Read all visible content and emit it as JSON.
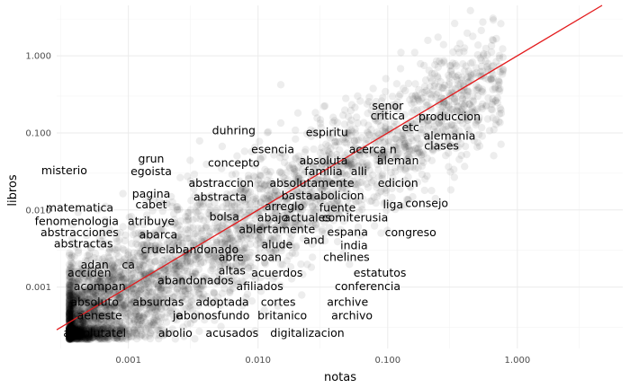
{
  "chart_data": {
    "type": "scatter",
    "xlabel": "notas",
    "ylabel": "libros",
    "x_scale": "log10",
    "y_scale": "log10",
    "xlim": [
      0.00028,
      6.5
    ],
    "ylim": [
      0.00016,
      4.5
    ],
    "x_ticks": [
      0.001,
      0.01,
      0.1,
      1
    ],
    "x_tick_labels": [
      "0.001",
      "0.010",
      "0.100",
      "1.000"
    ],
    "y_ticks": [
      0.001,
      0.01,
      0.1,
      1
    ],
    "y_tick_labels": [
      "0.001",
      "0.010",
      "0.100",
      "1.000"
    ],
    "grid": true,
    "point_color": "#000000",
    "point_alpha": 0.07,
    "reference_line": {
      "type": "y=x",
      "color": "#e31a1c"
    },
    "labels": [
      {
        "text": "senor",
        "x": 0.1,
        "y": 0.22
      },
      {
        "text": "critica",
        "x": 0.1,
        "y": 0.165
      },
      {
        "text": "produccion",
        "x": 0.3,
        "y": 0.16
      },
      {
        "text": "etc",
        "x": 0.15,
        "y": 0.115
      },
      {
        "text": "duhring",
        "x": 0.0065,
        "y": 0.105
      },
      {
        "text": "espiritu",
        "x": 0.034,
        "y": 0.1
      },
      {
        "text": "alemania",
        "x": 0.3,
        "y": 0.09
      },
      {
        "text": "clases",
        "x": 0.26,
        "y": 0.067
      },
      {
        "text": "esencia",
        "x": 0.013,
        "y": 0.06
      },
      {
        "text": "acerca",
        "x": 0.07,
        "y": 0.06
      },
      {
        "text": "n",
        "x": 0.11,
        "y": 0.06
      },
      {
        "text": "grun",
        "x": 0.0015,
        "y": 0.045
      },
      {
        "text": "concepto",
        "x": 0.0065,
        "y": 0.04
      },
      {
        "text": "absoluta",
        "x": 0.032,
        "y": 0.043
      },
      {
        "text": "i",
        "x": 0.085,
        "y": 0.043
      },
      {
        "text": "aleman",
        "x": 0.12,
        "y": 0.043
      },
      {
        "text": "misterio",
        "x": 0.00032,
        "y": 0.032
      },
      {
        "text": "egoista",
        "x": 0.0015,
        "y": 0.031
      },
      {
        "text": "familia",
        "x": 0.032,
        "y": 0.031
      },
      {
        "text": "alli",
        "x": 0.06,
        "y": 0.031
      },
      {
        "text": "abstraccion",
        "x": 0.0052,
        "y": 0.022
      },
      {
        "text": "absolutamente",
        "x": 0.026,
        "y": 0.022
      },
      {
        "text": "edicion",
        "x": 0.12,
        "y": 0.022
      },
      {
        "text": "pagina",
        "x": 0.0015,
        "y": 0.016
      },
      {
        "text": "basta",
        "x": 0.02,
        "y": 0.015
      },
      {
        "text": "abolicion",
        "x": 0.042,
        "y": 0.015
      },
      {
        "text": "abstracta",
        "x": 0.0051,
        "y": 0.0145
      },
      {
        "text": "consejo",
        "x": 0.2,
        "y": 0.012
      },
      {
        "text": "cabet",
        "x": 0.0015,
        "y": 0.0115
      },
      {
        "text": "arreglo",
        "x": 0.016,
        "y": 0.011
      },
      {
        "text": "fuente",
        "x": 0.041,
        "y": 0.0105
      },
      {
        "text": "liga",
        "x": 0.11,
        "y": 0.0115
      },
      {
        "text": "matematica",
        "x": 0.00042,
        "y": 0.0105
      },
      {
        "text": "bolsa",
        "x": 0.0055,
        "y": 0.008
      },
      {
        "text": "abajo",
        "x": 0.013,
        "y": 0.0078
      },
      {
        "text": "actuales",
        "x": 0.024,
        "y": 0.0078
      },
      {
        "text": "comiterusia",
        "x": 0.056,
        "y": 0.0078
      },
      {
        "text": "fenomenologia",
        "x": 0.0004,
        "y": 0.007
      },
      {
        "text": "atribuye",
        "x": 0.0015,
        "y": 0.007
      },
      {
        "text": "ablertamente",
        "x": 0.014,
        "y": 0.0055
      },
      {
        "text": "espana",
        "x": 0.049,
        "y": 0.0051
      },
      {
        "text": "congreso",
        "x": 0.15,
        "y": 0.005
      },
      {
        "text": "abstracciones",
        "x": 0.00042,
        "y": 0.005
      },
      {
        "text": "abarca",
        "x": 0.0017,
        "y": 0.0047
      },
      {
        "text": "and",
        "x": 0.027,
        "y": 0.004
      },
      {
        "text": "alude",
        "x": 0.014,
        "y": 0.0035
      },
      {
        "text": "india",
        "x": 0.055,
        "y": 0.0034
      },
      {
        "text": "abstractas",
        "x": 0.00045,
        "y": 0.0036
      },
      {
        "text": "cruel",
        "x": 0.0016,
        "y": 0.003
      },
      {
        "text": "abandonado",
        "x": 0.0038,
        "y": 0.003
      },
      {
        "text": "soan",
        "x": 0.012,
        "y": 0.0024
      },
      {
        "text": "chelines",
        "x": 0.048,
        "y": 0.0024
      },
      {
        "text": "abre",
        "x": 0.0062,
        "y": 0.0024
      },
      {
        "text": "adan",
        "x": 0.00055,
        "y": 0.0019
      },
      {
        "text": "ca",
        "x": 0.001,
        "y": 0.0019
      },
      {
        "text": "altas",
        "x": 0.0063,
        "y": 0.0016
      },
      {
        "text": "acuerdos",
        "x": 0.014,
        "y": 0.0015
      },
      {
        "text": "estatutos",
        "x": 0.087,
        "y": 0.0015
      },
      {
        "text": "acciden",
        "x": 0.0005,
        "y": 0.0015
      },
      {
        "text": "abandonados",
        "x": 0.0033,
        "y": 0.0012
      },
      {
        "text": "afiliados",
        "x": 0.0103,
        "y": 0.001
      },
      {
        "text": "conferencia",
        "x": 0.07,
        "y": 0.001
      },
      {
        "text": "acompan",
        "x": 0.0006,
        "y": 0.001
      },
      {
        "text": "absurdas",
        "x": 0.0017,
        "y": 0.00063
      },
      {
        "text": "adoptada",
        "x": 0.0053,
        "y": 0.00063
      },
      {
        "text": "cortes",
        "x": 0.0143,
        "y": 0.00063
      },
      {
        "text": "archive",
        "x": 0.049,
        "y": 0.00063
      },
      {
        "text": "absoluto",
        "x": 0.00055,
        "y": 0.00063
      },
      {
        "text": "je",
        "x": 0.0024,
        "y": 0.00042
      },
      {
        "text": "abonosfundo",
        "x": 0.0045,
        "y": 0.00042
      },
      {
        "text": "britanico",
        "x": 0.0154,
        "y": 0.00042
      },
      {
        "text": "archivo",
        "x": 0.053,
        "y": 0.00042
      },
      {
        "text": "aeneste",
        "x": 0.0006,
        "y": 0.00042
      },
      {
        "text": "absolutatel",
        "x": 0.00055,
        "y": 0.00025
      },
      {
        "text": "abolio",
        "x": 0.0023,
        "y": 0.00025
      },
      {
        "text": "acusados",
        "x": 0.0063,
        "y": 0.00025
      },
      {
        "text": "digitalizacion",
        "x": 0.024,
        "y": 0.00025
      }
    ]
  }
}
